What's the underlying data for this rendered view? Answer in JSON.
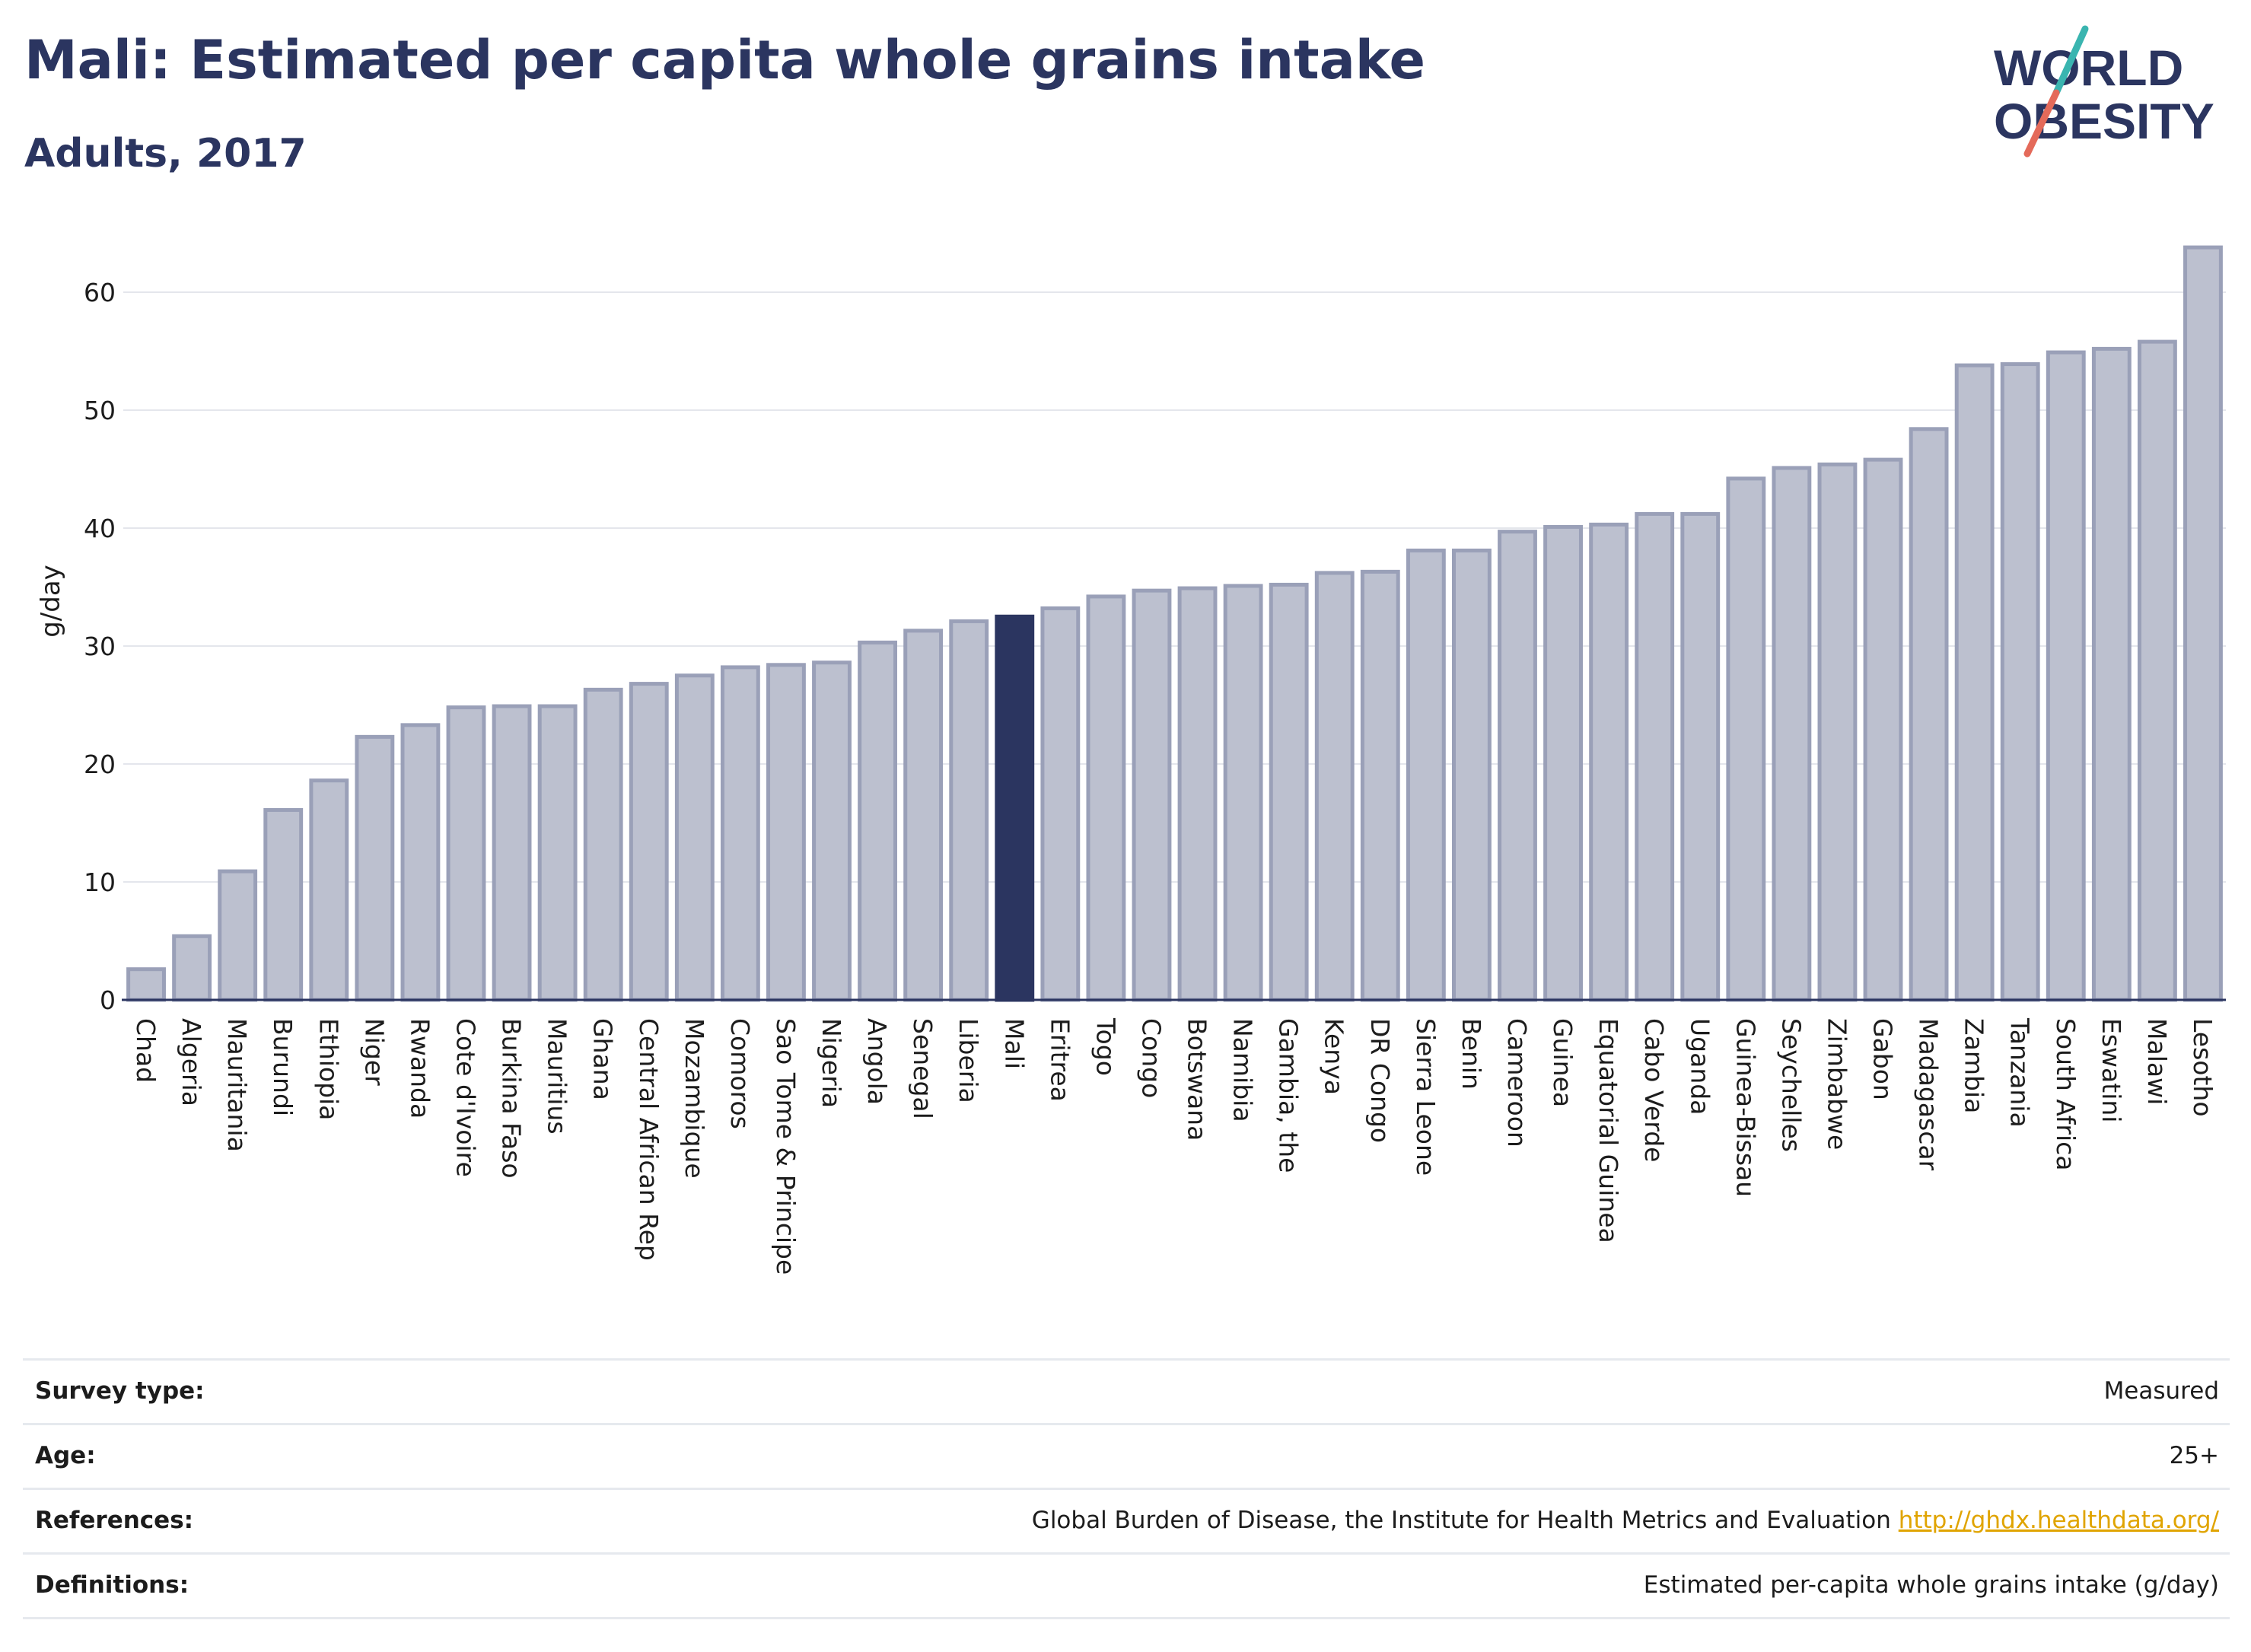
{
  "header": {
    "title": "Mali: Estimated per capita whole grains intake",
    "subtitle": "Adults, 2017"
  },
  "logo": {
    "line1": "WORLD",
    "line2": "OBESITY"
  },
  "chart_data": {
    "type": "bar",
    "ylabel": "g/day",
    "ylim": [
      0,
      65
    ],
    "yticks": [
      0,
      10,
      20,
      30,
      40,
      50,
      60
    ],
    "grid": true,
    "highlight": "Mali",
    "colors": {
      "bar": "#bcc0cf",
      "bar_edge": "#9aa0b8",
      "highlight": "#2b3560"
    },
    "categories": [
      "Chad",
      "Algeria",
      "Mauritania",
      "Burundi",
      "Ethiopia",
      "Niger",
      "Rwanda",
      "Cote d'Ivoire",
      "Burkina Faso",
      "Mauritius",
      "Ghana",
      "Central African Rep",
      "Mozambique",
      "Comoros",
      "Sao Tome & Principe",
      "Nigeria",
      "Angola",
      "Senegal",
      "Liberia",
      "Mali",
      "Eritrea",
      "Togo",
      "Congo",
      "Botswana",
      "Namibia",
      "Gambia, the",
      "Kenya",
      "DR Congo",
      "Sierra Leone",
      "Benin",
      "Cameroon",
      "Guinea",
      "Equatorial Guinea",
      "Cabo Verde",
      "Uganda",
      "Guinea-Bissau",
      "Seychelles",
      "Zimbabwe",
      "Gabon",
      "Madagascar",
      "Zambia",
      "Tanzania",
      "South Africa",
      "Eswatini",
      "Malawi",
      "Lesotho"
    ],
    "values": [
      2.6,
      5.4,
      10.9,
      16.1,
      18.6,
      22.3,
      23.3,
      24.8,
      24.9,
      24.9,
      26.3,
      26.8,
      27.5,
      28.2,
      28.4,
      28.6,
      30.3,
      31.3,
      32.1,
      32.5,
      33.2,
      34.2,
      34.7,
      34.9,
      35.1,
      35.2,
      36.2,
      36.3,
      38.1,
      38.1,
      39.7,
      40.1,
      40.3,
      41.2,
      41.2,
      44.2,
      45.1,
      45.4,
      45.8,
      48.4,
      53.8,
      53.9,
      54.9,
      55.2,
      55.8,
      63.8
    ]
  },
  "info": {
    "survey_type": {
      "label": "Survey type:",
      "value": "Measured"
    },
    "age": {
      "label": "Age:",
      "value": "25+"
    },
    "references": {
      "label": "References:",
      "value": "Global Burden of Disease, the Institute for Health Metrics and Evaluation",
      "link": "http://ghdx.healthdata.org/"
    },
    "definitions": {
      "label": "Definitions:",
      "value": "Estimated per-capita whole grains intake (g/day)"
    }
  }
}
